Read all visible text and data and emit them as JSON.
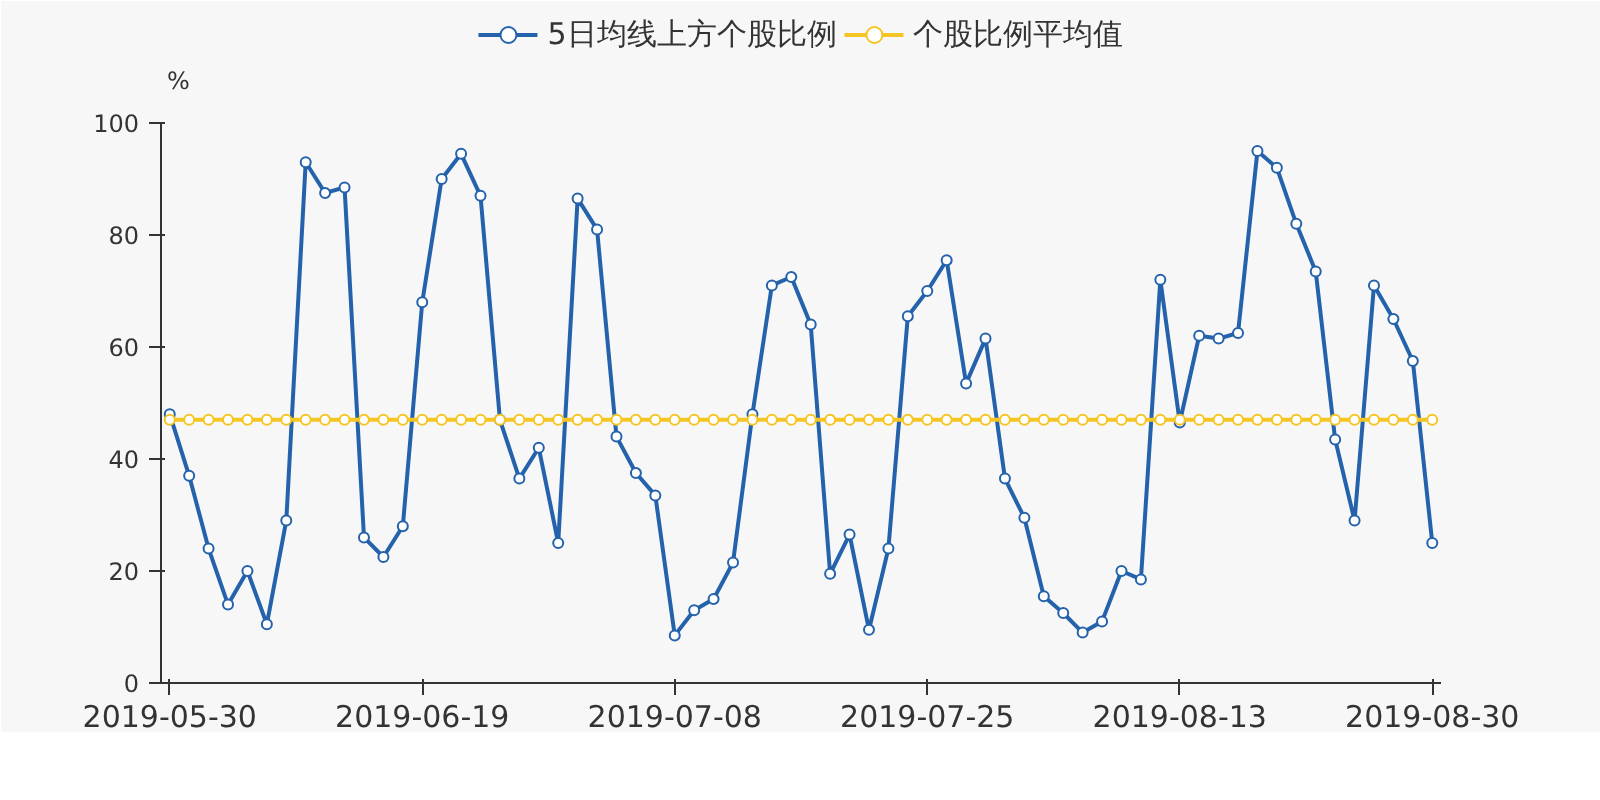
{
  "chart_data": {
    "type": "line",
    "ylabel": "%",
    "categories": [
      "2019-05-30",
      null,
      null,
      null,
      null,
      null,
      null,
      null,
      null,
      null,
      null,
      null,
      null,
      "2019-06-19",
      null,
      null,
      null,
      null,
      null,
      null,
      null,
      null,
      null,
      null,
      null,
      null,
      "2019-07-08",
      null,
      null,
      null,
      null,
      null,
      null,
      null,
      null,
      null,
      null,
      null,
      null,
      "2019-07-25",
      null,
      null,
      null,
      null,
      null,
      null,
      null,
      null,
      null,
      null,
      null,
      null,
      "2019-08-13",
      null,
      null,
      null,
      null,
      null,
      null,
      null,
      null,
      null,
      null,
      null,
      null,
      "2019-08-30"
    ],
    "series": [
      {
        "name": "5日均线上方个股比例",
        "color": "#2462ab",
        "values": [
          48,
          37,
          24,
          14,
          20,
          10.5,
          29,
          93,
          87.5,
          88.5,
          26,
          22.5,
          28,
          68,
          90,
          94.5,
          87,
          47,
          36.5,
          42,
          25,
          86.5,
          81,
          44,
          37.5,
          33.5,
          8.5,
          13,
          15,
          21.5,
          48,
          71,
          72.5,
          64,
          19.5,
          26.5,
          9.5,
          24,
          65.5,
          70,
          75.5,
          53.5,
          61.5,
          36.5,
          29.5,
          15.5,
          12.5,
          9,
          11,
          20,
          18.5,
          72,
          46.5,
          62,
          61.5,
          62.5,
          95,
          92,
          82,
          73.5,
          43.5,
          29,
          71,
          65,
          57.5,
          25
        ]
      },
      {
        "name": "个股比例平均值",
        "color": "#f5c623",
        "values": [
          47,
          47,
          47,
          47,
          47,
          47,
          47,
          47,
          47,
          47,
          47,
          47,
          47,
          47,
          47,
          47,
          47,
          47,
          47,
          47,
          47,
          47,
          47,
          47,
          47,
          47,
          47,
          47,
          47,
          47,
          47,
          47,
          47,
          47,
          47,
          47,
          47,
          47,
          47,
          47,
          47,
          47,
          47,
          47,
          47,
          47,
          47,
          47,
          47,
          47,
          47,
          47,
          47,
          47,
          47,
          47,
          47,
          47,
          47,
          47,
          47,
          47,
          47,
          47,
          47,
          47
        ]
      }
    ],
    "ylim": [
      0,
      100
    ],
    "yticks": [
      0,
      20,
      40,
      60,
      80,
      100
    ],
    "grid": false,
    "legend": "top",
    "marker": "circle",
    "line_style": "solid"
  }
}
